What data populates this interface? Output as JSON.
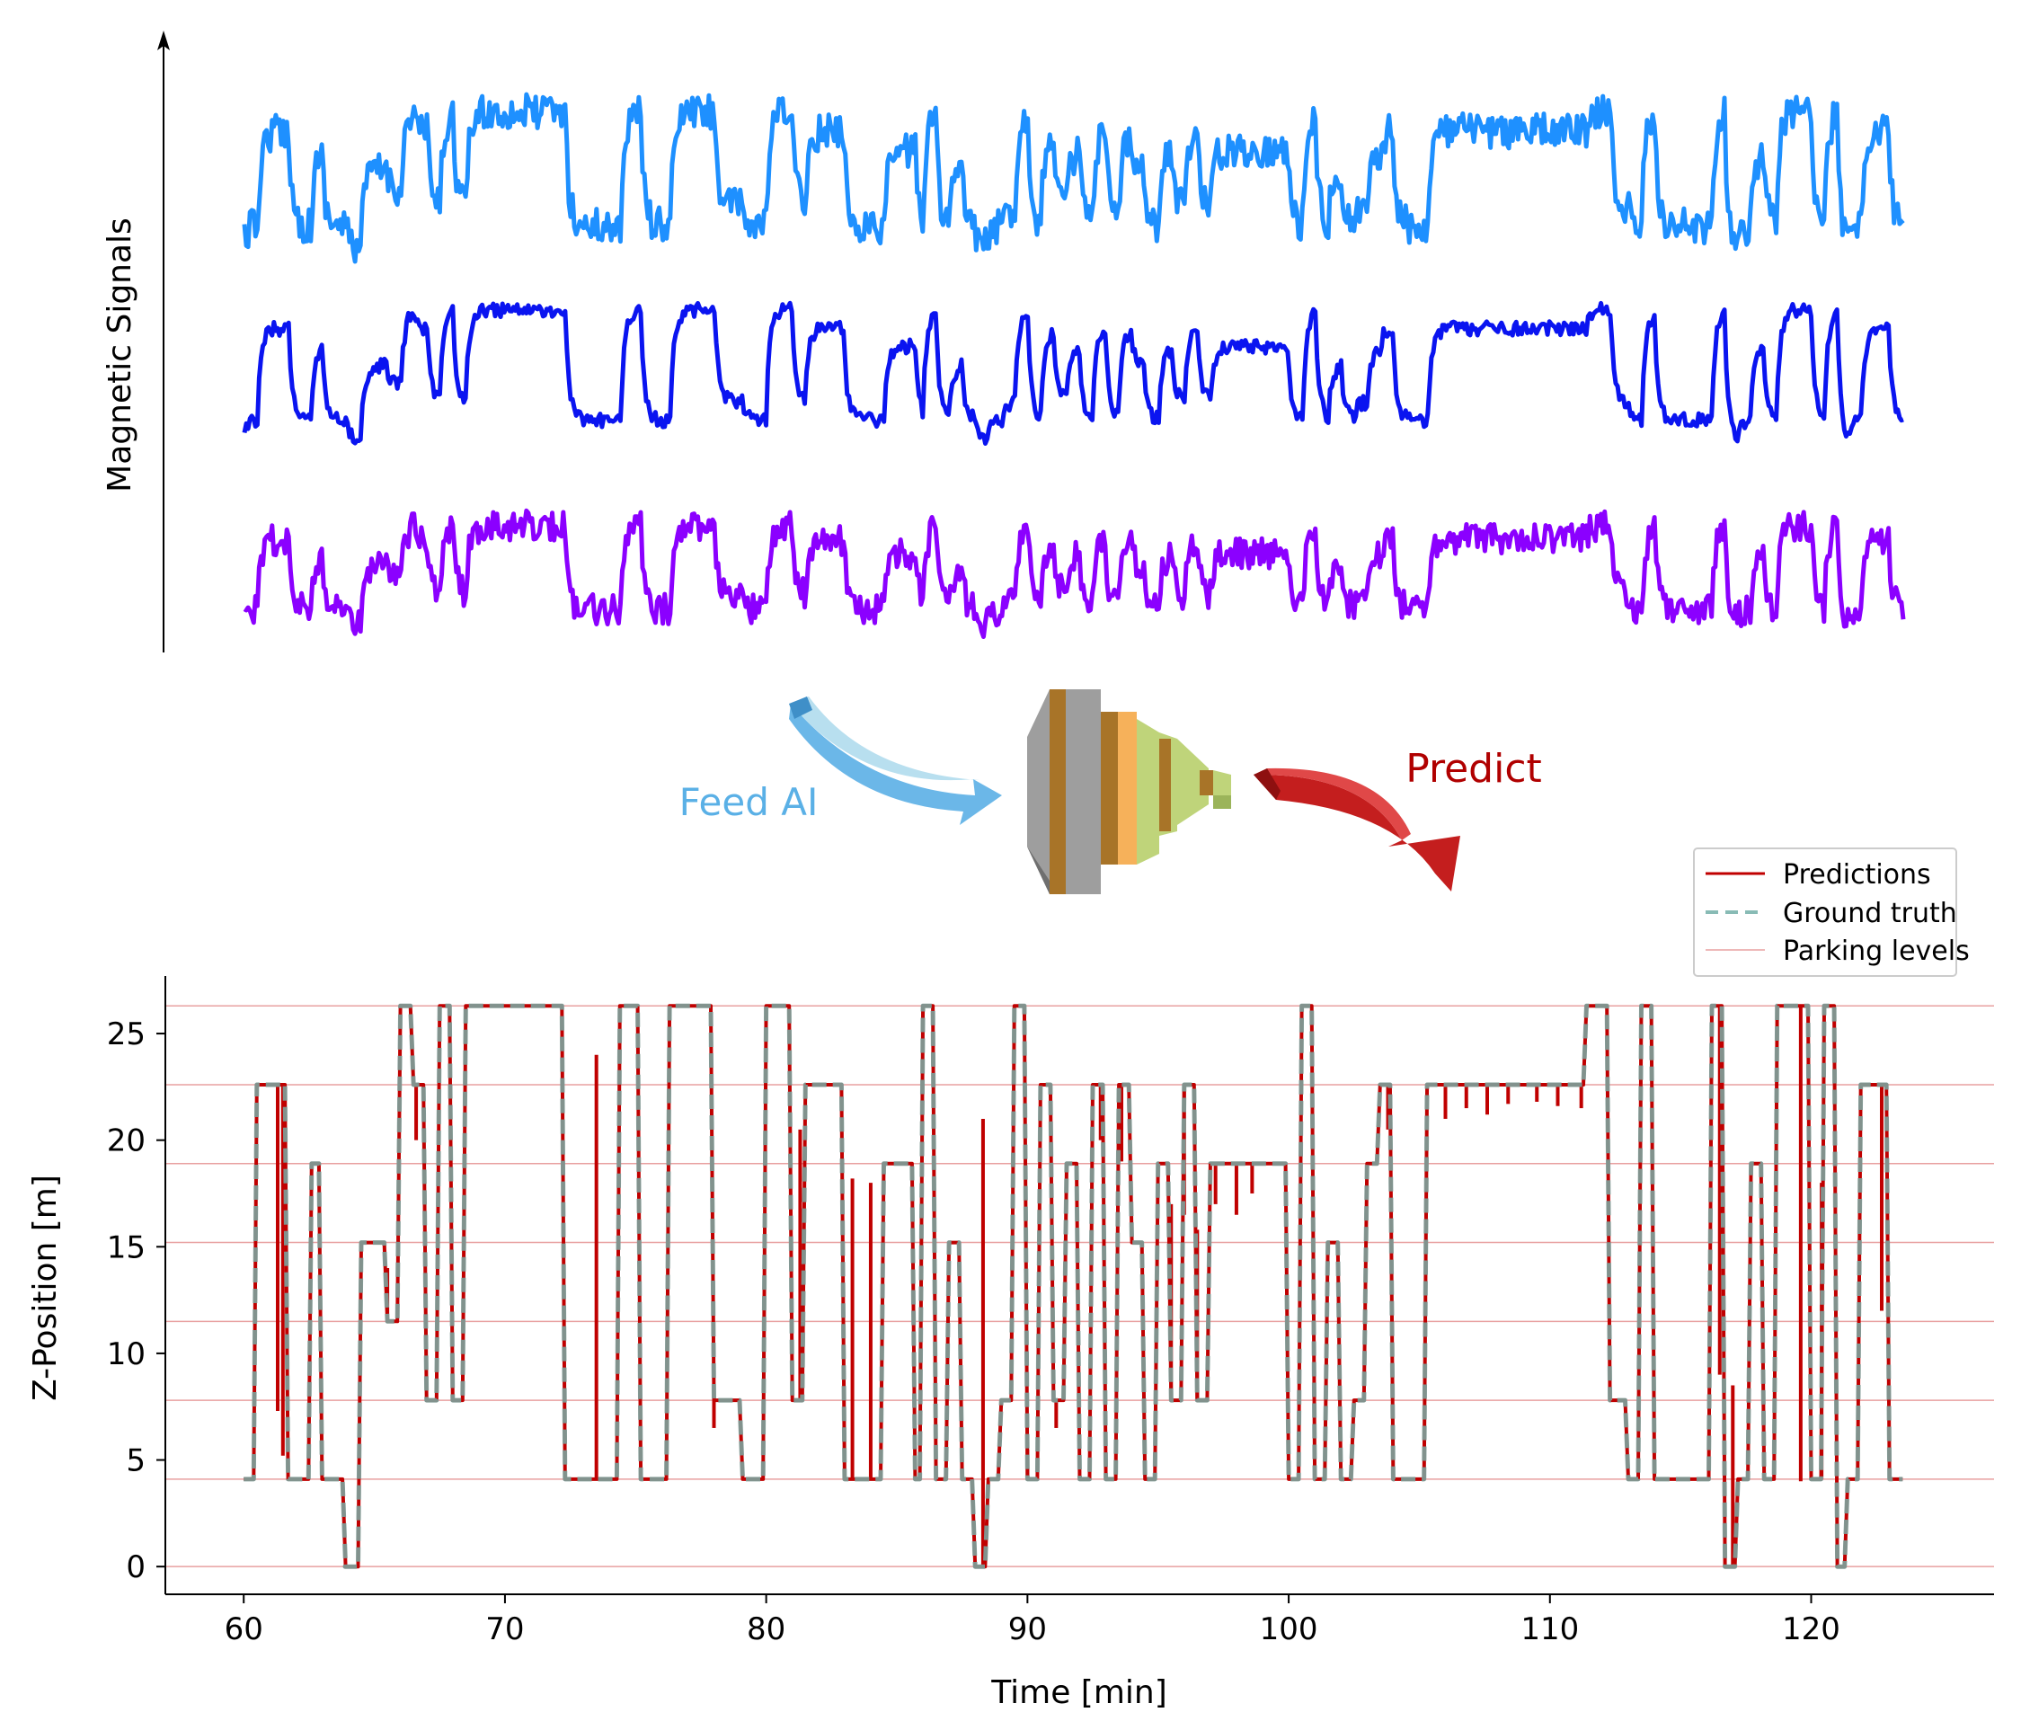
{
  "colors": {
    "signal_top": "#1E90FF",
    "signal_mid": "#0A14F0",
    "signal_bottom": "#8B00FF",
    "predictions": "#C00000",
    "ground_truth": "#88BBB5",
    "parking_levels": "#E8A0A0",
    "feed_arrow": "#5AB0E6",
    "predict_arrow": "#D03030",
    "network_gray": "#9E9E9E",
    "network_orange": "#F6B15A",
    "network_green": "#BFD47A",
    "network_band": "#A87428"
  },
  "top_panel": {
    "ylabel": "Magnetic Signals"
  },
  "middle": {
    "feed_label": "Feed AI",
    "predict_label": "Predict",
    "icons": [
      "feed-arrow-icon",
      "neural-network-icon",
      "predict-arrow-icon"
    ]
  },
  "chart_data": {
    "type": "line",
    "title": "",
    "xlabel": "Time [min]",
    "ylabel": "Z-Position [m]",
    "xlim": [
      57,
      127
    ],
    "ylim": [
      -1.3,
      27.7
    ],
    "xticks": [
      60,
      70,
      80,
      90,
      100,
      110,
      120
    ],
    "yticks": [
      0,
      5,
      10,
      15,
      20,
      25
    ],
    "grid": false,
    "legend": {
      "position": "upper-right",
      "entries": [
        "Predictions",
        "Ground truth",
        "Parking levels"
      ]
    },
    "parking_levels": [
      0,
      4.1,
      7.8,
      11.5,
      15.2,
      18.9,
      22.6,
      26.3
    ],
    "series": [
      {
        "name": "Ground truth",
        "style": "dashed",
        "x": [
          60.0,
          60.5,
          61.0,
          61.7,
          62.3,
          62.6,
          63.0,
          63.6,
          63.9,
          64.0,
          64.5,
          65.2,
          65.5,
          66.0,
          66.5,
          67.0,
          67.5,
          68.0,
          68.5,
          71.5,
          72.3,
          72.6,
          74.4,
          74.9,
          75.2,
          75.8,
          76.3,
          76.7,
          78.0,
          78.7,
          79.1,
          80.0,
          80.5,
          81.0,
          81.5,
          82.5,
          83.0,
          84.5,
          85.0,
          85.7,
          86.0,
          86.5,
          87.0,
          87.5,
          88.0,
          88.5,
          89.0,
          89.5,
          90.0,
          90.5,
          91.0,
          91.5,
          92.0,
          92.5,
          93.0,
          93.5,
          94.0,
          94.5,
          95.0,
          95.5,
          96.0,
          96.5,
          97.0,
          99.5,
          100.0,
          100.5,
          101.0,
          101.5,
          102.0,
          102.5,
          103.0,
          103.5,
          104.0,
          105.3,
          105.6,
          111.0,
          111.4,
          112.3,
          112.6,
          113.0,
          113.5,
          114.0,
          114.5,
          115.8,
          116.2,
          116.7,
          117.2,
          117.7,
          118.2,
          118.7,
          119.5,
          120.0,
          120.5,
          121.0,
          121.4,
          121.9,
          122.7,
          123.0,
          123.5
        ],
        "y": [
          4.1,
          22.6,
          22.6,
          4.1,
          4.1,
          18.9,
          4.1,
          4.1,
          0.0,
          0.0,
          15.2,
          15.2,
          11.5,
          26.3,
          22.6,
          7.8,
          26.3,
          7.8,
          26.3,
          26.3,
          4.1,
          4.1,
          26.3,
          26.3,
          4.1,
          4.1,
          26.3,
          26.3,
          7.8,
          7.8,
          4.1,
          26.3,
          26.3,
          7.8,
          22.6,
          22.6,
          4.1,
          18.9,
          18.9,
          4.1,
          26.3,
          4.1,
          15.2,
          4.1,
          0.0,
          4.1,
          7.8,
          26.3,
          4.1,
          22.6,
          7.8,
          18.9,
          4.1,
          22.6,
          4.1,
          22.6,
          15.2,
          4.1,
          18.9,
          7.8,
          22.6,
          7.8,
          18.9,
          18.9,
          4.1,
          26.3,
          4.1,
          15.2,
          4.1,
          7.8,
          18.9,
          22.6,
          4.1,
          22.6,
          22.6,
          22.6,
          26.3,
          7.8,
          7.8,
          4.1,
          26.3,
          4.1,
          4.1,
          4.1,
          26.3,
          0.0,
          4.1,
          18.9,
          4.1,
          26.3,
          26.3,
          4.1,
          26.3,
          0.0,
          4.1,
          22.6,
          22.6,
          4.1,
          4.1
        ]
      },
      {
        "name": "Predictions",
        "style": "solid",
        "x": [
          60.0,
          60.5,
          61.0,
          61.7,
          62.3,
          62.6,
          63.0,
          63.6,
          63.9,
          64.0,
          64.5,
          65.2,
          65.5,
          66.0,
          66.5,
          67.0,
          67.5,
          68.0,
          68.5,
          71.5,
          72.3,
          72.6,
          74.4,
          74.9,
          75.2,
          75.8,
          76.3,
          76.7,
          78.0,
          78.7,
          79.1,
          80.0,
          80.5,
          81.0,
          81.5,
          82.5,
          83.0,
          84.5,
          85.0,
          85.7,
          86.0,
          86.5,
          87.0,
          87.5,
          88.0,
          88.5,
          89.0,
          89.5,
          90.0,
          90.5,
          91.0,
          91.5,
          92.0,
          92.5,
          93.0,
          93.5,
          94.0,
          94.5,
          95.0,
          95.5,
          96.0,
          96.5,
          97.0,
          99.5,
          100.0,
          100.5,
          101.0,
          101.5,
          102.0,
          102.5,
          103.0,
          103.5,
          104.0,
          105.3,
          105.6,
          111.0,
          111.4,
          112.3,
          112.6,
          113.0,
          113.5,
          114.0,
          114.5,
          115.8,
          116.2,
          116.7,
          117.2,
          117.7,
          118.2,
          118.7,
          119.5,
          120.0,
          120.5,
          121.0,
          121.4,
          121.9,
          122.7,
          123.0,
          123.5
        ],
        "y": [
          4.1,
          22.6,
          22.6,
          4.1,
          4.1,
          18.9,
          4.1,
          4.1,
          0.0,
          0.0,
          15.2,
          15.2,
          11.5,
          26.3,
          22.6,
          7.8,
          26.3,
          7.8,
          26.3,
          26.3,
          4.1,
          4.1,
          26.3,
          26.3,
          4.1,
          4.1,
          26.3,
          26.3,
          7.8,
          7.8,
          4.1,
          26.3,
          26.3,
          7.8,
          22.6,
          22.6,
          4.1,
          18.9,
          18.9,
          4.1,
          26.3,
          4.1,
          15.2,
          4.1,
          0.0,
          4.1,
          7.8,
          26.3,
          4.1,
          22.6,
          7.8,
          18.9,
          4.1,
          22.6,
          4.1,
          22.6,
          15.2,
          4.1,
          18.9,
          7.8,
          22.6,
          7.8,
          18.9,
          18.9,
          4.1,
          26.3,
          4.1,
          15.2,
          4.1,
          7.8,
          18.9,
          22.6,
          4.1,
          22.6,
          22.6,
          22.6,
          26.3,
          7.8,
          7.8,
          4.1,
          26.3,
          4.1,
          4.1,
          4.1,
          26.3,
          0.0,
          4.1,
          18.9,
          4.1,
          26.3,
          26.3,
          4.1,
          26.3,
          0.0,
          4.1,
          22.6,
          22.6,
          4.1,
          4.1
        ],
        "spikes": [
          [
            61.3,
            7.3
          ],
          [
            61.5,
            5.2
          ],
          [
            65.5,
            14.0
          ],
          [
            66.6,
            20.0
          ],
          [
            73.5,
            24.0
          ],
          [
            78.0,
            6.5
          ],
          [
            81.3,
            20.5
          ],
          [
            83.3,
            18.2
          ],
          [
            84.0,
            18.0
          ],
          [
            88.3,
            21.0
          ],
          [
            90.0,
            5.5
          ],
          [
            91.1,
            6.5
          ],
          [
            92.8,
            20.0
          ],
          [
            93.6,
            19.0
          ],
          [
            95.5,
            17.0
          ],
          [
            96.0,
            16.5
          ],
          [
            96.5,
            15.8
          ],
          [
            97.2,
            17.0
          ],
          [
            98.0,
            16.5
          ],
          [
            98.6,
            17.5
          ],
          [
            103.8,
            20.5
          ],
          [
            106.0,
            21.0
          ],
          [
            106.8,
            21.5
          ],
          [
            107.6,
            21.2
          ],
          [
            108.4,
            21.7
          ],
          [
            109.5,
            21.8
          ],
          [
            110.3,
            21.6
          ],
          [
            111.2,
            21.5
          ],
          [
            116.5,
            9.0
          ],
          [
            117.0,
            8.5
          ],
          [
            119.6,
            4.0
          ],
          [
            120.4,
            18.0
          ],
          [
            122.7,
            12.0
          ]
        ]
      }
    ]
  }
}
